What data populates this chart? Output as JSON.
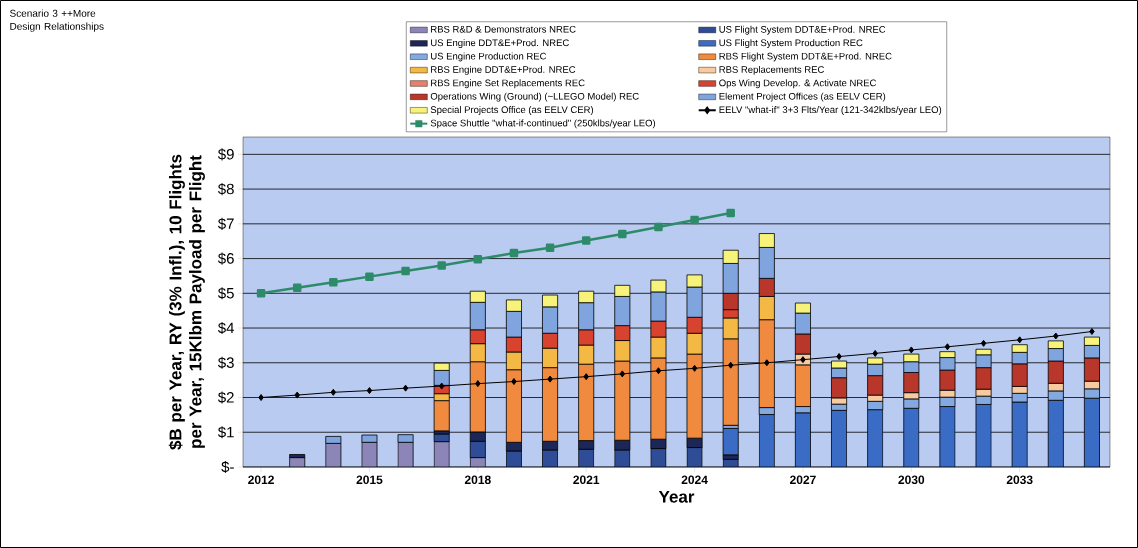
{
  "chart_data": {
    "type": "bar",
    "stacked": true,
    "ylabel": "$B per Year, RY (3% Infl.), 10 Flights per Year, 15Klbm Payload per Flight",
    "xlabel": "Year",
    "annotations": [
      "Scenario 3 ++More Design Relationships"
    ],
    "categories": [
      "2012",
      null,
      null,
      "2015",
      null,
      null,
      "2018",
      null,
      null,
      "2021",
      null,
      null,
      "2024",
      null,
      null,
      "2027",
      null,
      null,
      "2030",
      null,
      null,
      "2033",
      null,
      null
    ],
    "ylim": [
      0,
      9.5
    ],
    "yticks": [
      {
        "value": 0,
        "label": "$-"
      },
      {
        "value": 1,
        "label": "$1"
      },
      {
        "value": 2,
        "label": "$2"
      },
      {
        "value": 3,
        "label": "$3"
      },
      {
        "value": 4,
        "label": "$4"
      },
      {
        "value": 5,
        "label": "$5"
      },
      {
        "value": 6,
        "label": "$6"
      },
      {
        "value": 7,
        "label": "$7"
      },
      {
        "value": 8,
        "label": "$8"
      },
      {
        "value": 9,
        "label": "$9"
      }
    ],
    "grid": "y",
    "legend": "top",
    "series": [
      {
        "name": "RBS R&D & Demonstrators NREC",
        "color": "#8c86b8",
        "values": [
          null,
          0.27,
          0.68,
          0.71,
          0.71,
          0.73,
          0.27,
          null,
          null,
          null,
          null,
          null,
          null,
          null,
          null,
          null,
          null,
          null,
          null,
          null,
          null,
          null,
          null,
          null
        ]
      },
      {
        "name": "US Flight System DDT&E+Prod. NREC",
        "color": "#2e4d96",
        "values": [
          null,
          null,
          null,
          null,
          null,
          0.22,
          0.47,
          0.46,
          0.49,
          0.51,
          0.49,
          0.53,
          0.56,
          0.22,
          null,
          null,
          null,
          null,
          null,
          null,
          null,
          null,
          null,
          null
        ]
      },
      {
        "name": "US Engine DDT&E+Prod. NREC",
        "color": "#1c2757",
        "values": [
          null,
          0.09,
          null,
          null,
          null,
          0.09,
          0.27,
          0.25,
          0.25,
          0.25,
          0.28,
          0.27,
          0.27,
          0.13,
          null,
          null,
          null,
          null,
          null,
          null,
          null,
          null,
          null,
          null
        ]
      },
      {
        "name": "US Flight System Production REC",
        "color": "#3a6cc6",
        "values": [
          null,
          null,
          null,
          null,
          null,
          null,
          null,
          null,
          null,
          null,
          null,
          null,
          null,
          0.76,
          1.51,
          1.56,
          1.63,
          1.65,
          1.69,
          1.74,
          1.8,
          1.87,
          1.92,
          1.98
        ]
      },
      {
        "name": "US Engine Production REC",
        "color": "#84a8e0",
        "values": [
          null,
          null,
          null,
          null,
          null,
          null,
          null,
          null,
          null,
          null,
          null,
          null,
          null,
          0.09,
          0.2,
          0.18,
          0.18,
          0.24,
          0.27,
          0.27,
          0.24,
          0.25,
          0.27,
          0.27
        ]
      },
      {
        "name": "RBS Flight System DDT&E+Prod. NREC",
        "color": "#ef8a3e",
        "values": [
          null,
          null,
          null,
          null,
          null,
          0.87,
          2.02,
          2.09,
          2.12,
          2.2,
          2.28,
          2.34,
          2.42,
          2.49,
          2.53,
          1.2,
          null,
          null,
          null,
          null,
          null,
          null,
          null,
          null
        ]
      },
      {
        "name": "RBS Engine DDT&E+Prod. NREC",
        "color": "#f4b844",
        "values": [
          null,
          null,
          null,
          null,
          null,
          0.2,
          0.52,
          0.51,
          0.56,
          0.55,
          0.59,
          0.6,
          0.6,
          0.6,
          0.67,
          null,
          null,
          null,
          null,
          null,
          null,
          null,
          null,
          null
        ]
      },
      {
        "name": "RBS Replacements REC",
        "color": "#f7caa0",
        "values": [
          null,
          null,
          null,
          null,
          null,
          null,
          null,
          null,
          null,
          null,
          null,
          null,
          null,
          null,
          null,
          0.31,
          0.18,
          0.18,
          0.18,
          0.2,
          0.2,
          0.2,
          0.22,
          0.22
        ]
      },
      {
        "name": "RBS Engine Set Replacements REC",
        "color": "#e9806c",
        "values": [
          null,
          null,
          null,
          null,
          null,
          null,
          null,
          null,
          null,
          null,
          null,
          null,
          null,
          null,
          null,
          null,
          null,
          null,
          null,
          null,
          null,
          null,
          null,
          null
        ]
      },
      {
        "name": "Ops Wing Develop. & Activate NREC",
        "color": "#d8432f",
        "values": [
          null,
          null,
          null,
          null,
          null,
          0.24,
          0.4,
          0.43,
          0.43,
          0.44,
          0.43,
          0.46,
          0.46,
          0.24,
          null,
          null,
          null,
          null,
          null,
          null,
          null,
          null,
          null,
          null
        ]
      },
      {
        "name": "Operations Wing (Ground) (~LLEGO Model) REC",
        "color": "#b8372a",
        "values": [
          null,
          null,
          null,
          null,
          null,
          null,
          null,
          null,
          null,
          null,
          null,
          null,
          null,
          0.47,
          0.52,
          0.58,
          0.58,
          0.56,
          0.58,
          0.58,
          0.62,
          0.65,
          0.64,
          0.67
        ]
      },
      {
        "name": "Element Project Offices (as EELV CER)",
        "color": "#7fa4de",
        "values": [
          null,
          null,
          0.2,
          0.21,
          0.22,
          0.43,
          0.79,
          0.74,
          0.76,
          0.78,
          0.84,
          0.84,
          0.87,
          0.86,
          0.89,
          0.6,
          0.28,
          0.33,
          0.31,
          0.36,
          0.37,
          0.33,
          0.36,
          0.36
        ]
      },
      {
        "name": "Special Projects Office (as EELV CER)",
        "color": "#f7f27a",
        "values": [
          null,
          null,
          null,
          null,
          null,
          0.21,
          0.32,
          0.33,
          0.34,
          0.33,
          0.32,
          0.34,
          0.35,
          0.38,
          0.4,
          0.29,
          0.2,
          0.18,
          0.22,
          0.17,
          0.16,
          0.22,
          0.22,
          0.24
        ]
      },
      {
        "name": "EELV \"what-if\" 3+3 Flts/Year (121-342klbs/year LEO)",
        "color": "#000000",
        "type": "line",
        "marker": "diamond",
        "values": [
          2.0,
          2.07,
          2.15,
          2.2,
          2.27,
          2.33,
          2.4,
          2.46,
          2.53,
          2.6,
          2.68,
          2.77,
          2.84,
          2.93,
          3.0,
          3.09,
          3.18,
          3.27,
          3.37,
          3.46,
          3.56,
          3.66,
          3.77,
          3.9
        ]
      },
      {
        "name": "Space Shuttle \"what-if-continued\" (250klbs/year LEO)",
        "color": "#2e8b6a",
        "type": "line",
        "marker": "square",
        "values": [
          5.0,
          5.16,
          5.32,
          5.48,
          5.64,
          5.8,
          5.98,
          6.16,
          6.31,
          6.52,
          6.71,
          6.91,
          7.11,
          7.31,
          null,
          null,
          null,
          null,
          null,
          null,
          null,
          null,
          null,
          null
        ]
      }
    ]
  }
}
